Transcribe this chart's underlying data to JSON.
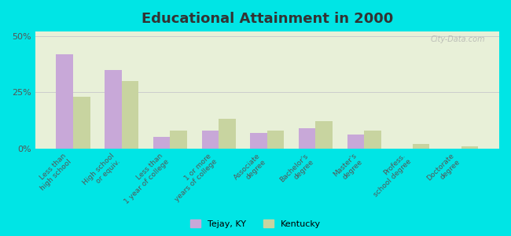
{
  "title": "Educational Attainment in 2000",
  "categories": [
    "Less than\nhigh school",
    "High school\nor equiv.",
    "Less than\n1 year of college",
    "1 or more\nyears of college",
    "Associate\ndegree",
    "Bachelor's\ndegree",
    "Master's\ndegree",
    "Profess.\nschool degree",
    "Doctorate\ndegree"
  ],
  "tejay_values": [
    42,
    35,
    5,
    8,
    7,
    9,
    6,
    0,
    0
  ],
  "kentucky_values": [
    23,
    30,
    8,
    13,
    8,
    12,
    8,
    2,
    1
  ],
  "tejay_color": "#c8a8d8",
  "kentucky_color": "#c8d4a0",
  "background_color": "#00e5e5",
  "plot_bg_top": "#e8f0d8",
  "plot_bg_bottom": "#f5f8ee",
  "ylim": [
    0,
    52
  ],
  "yticks": [
    0,
    25,
    50
  ],
  "ytick_labels": [
    "0%",
    "25%",
    "50%"
  ],
  "watermark": "City-Data.com",
  "legend_tejay": "Tejay, KY",
  "legend_kentucky": "Kentucky"
}
